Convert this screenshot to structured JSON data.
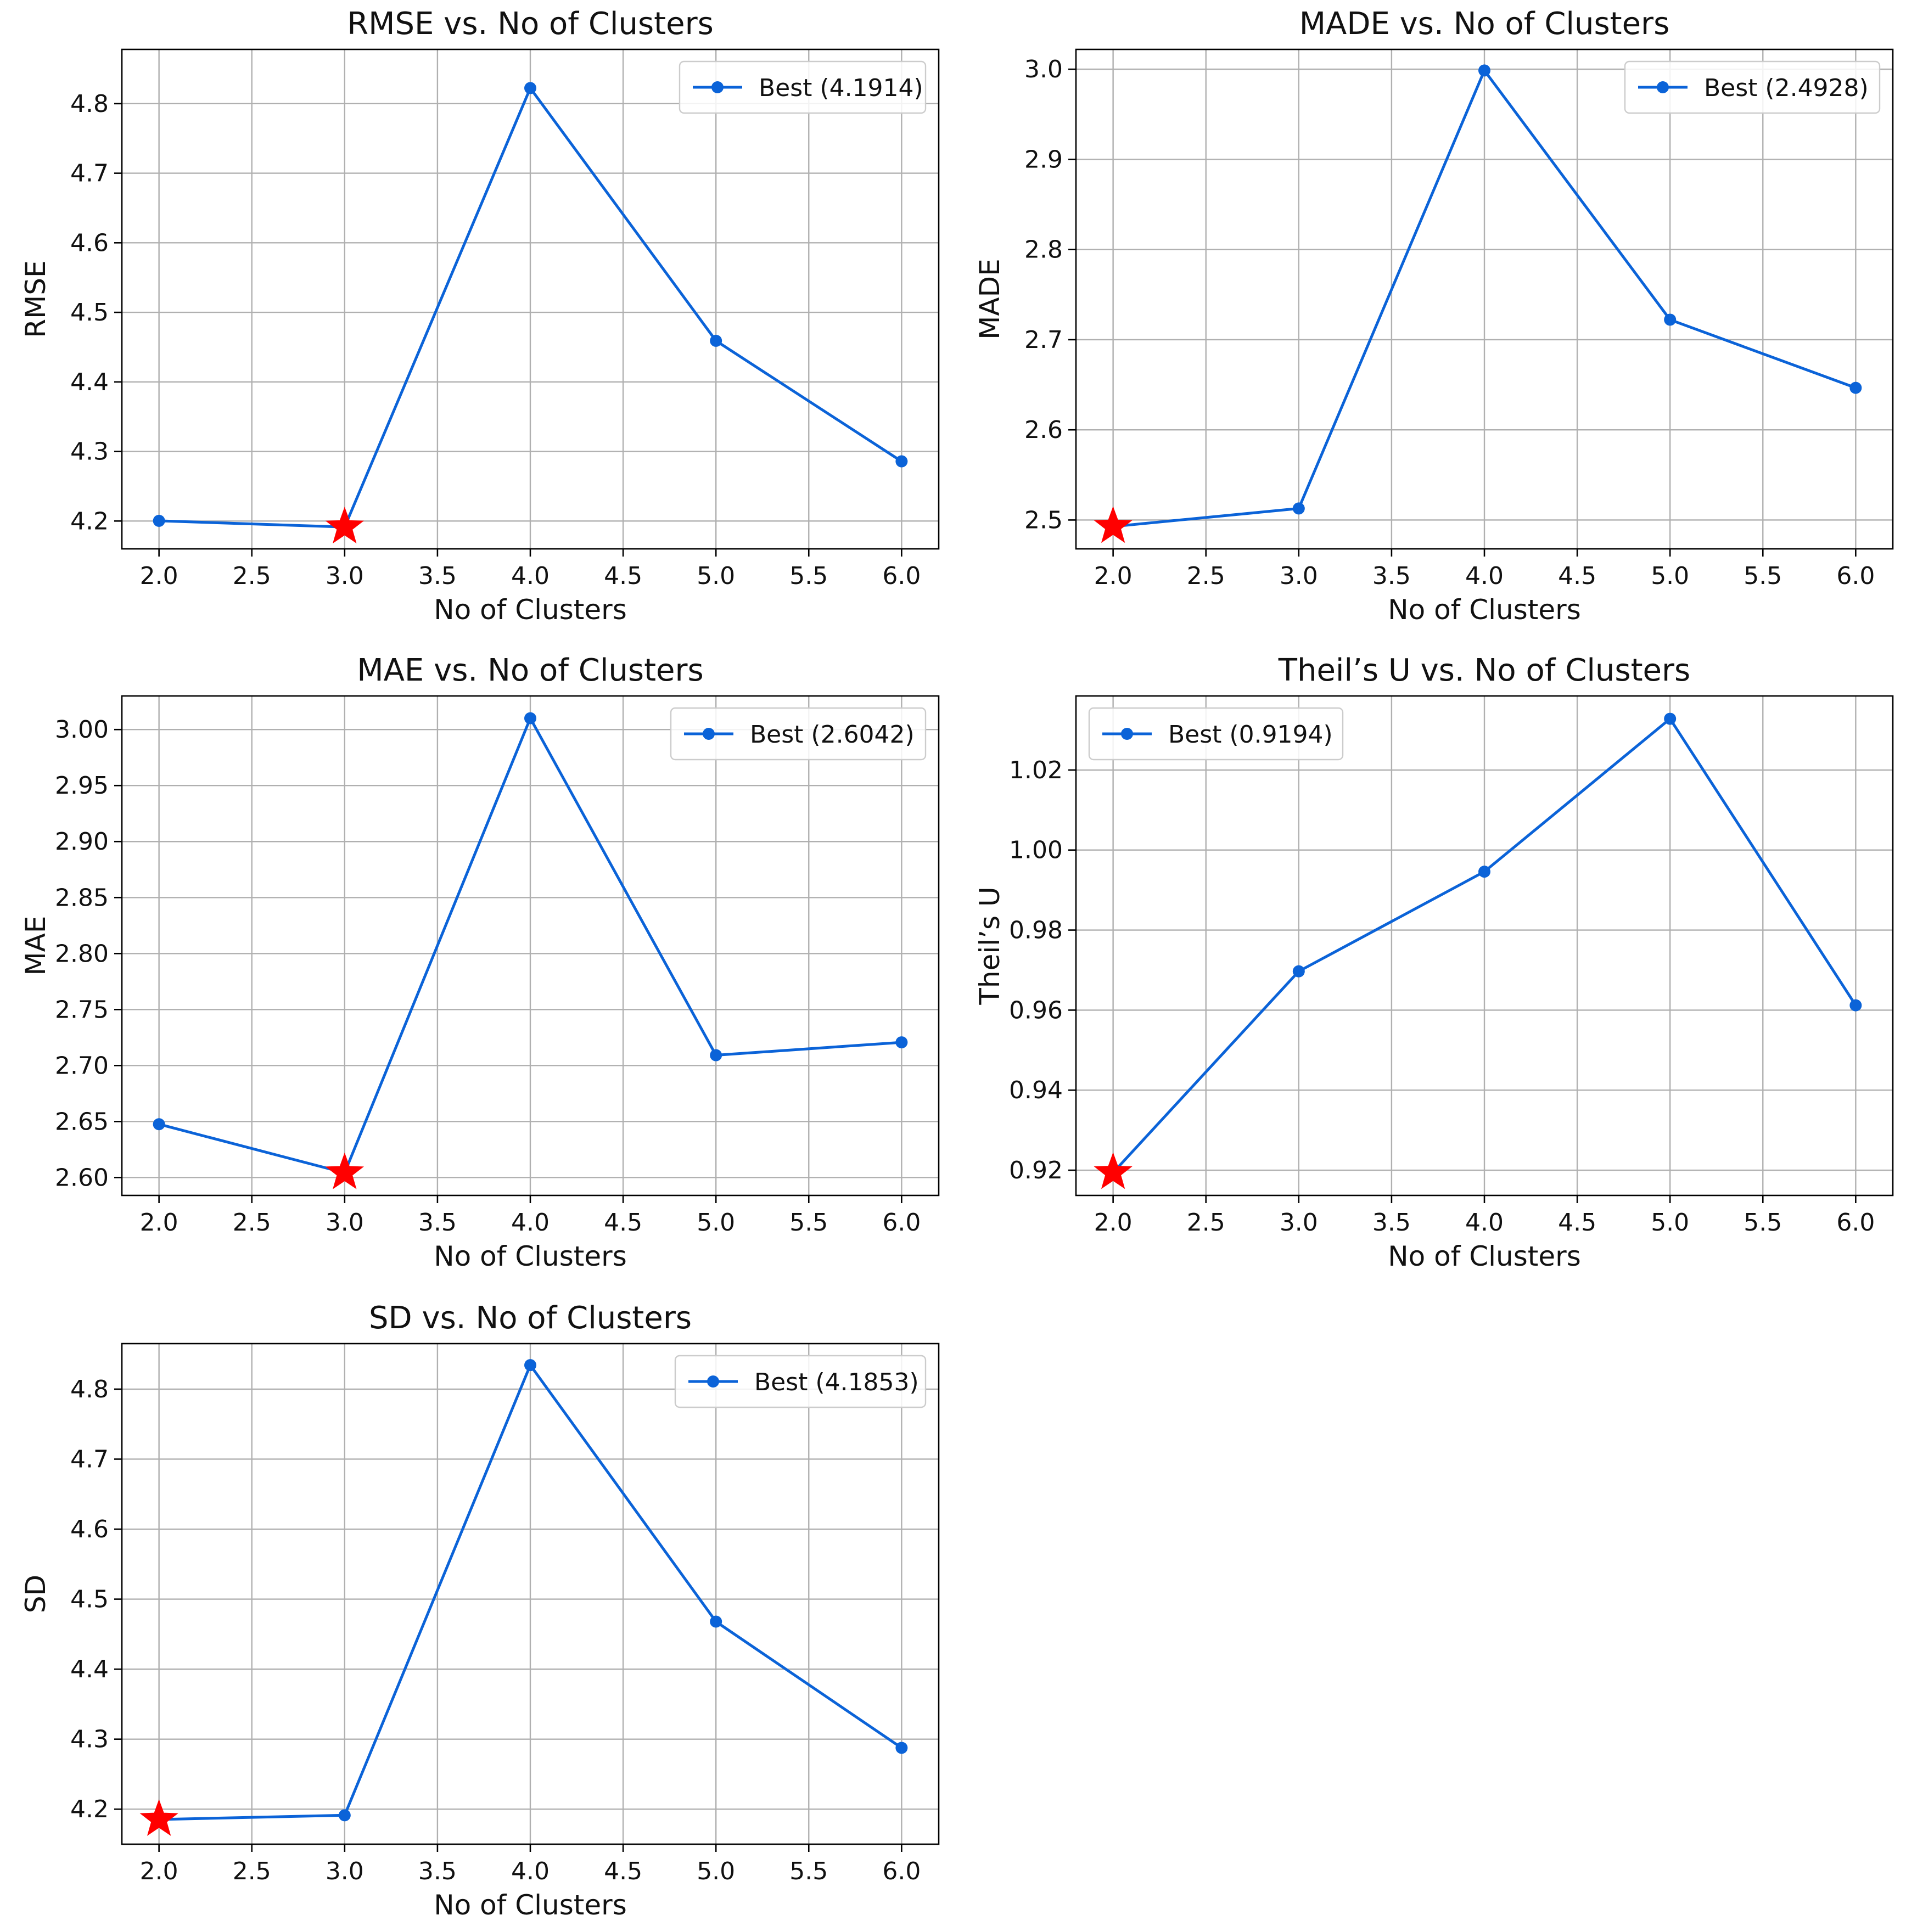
{
  "colors": {
    "line": "#0b63d8",
    "best_marker": "#ff0000",
    "grid": "#b0b0b0"
  },
  "chart_data": [
    {
      "type": "line",
      "title": "RMSE vs. No of Clusters",
      "xlabel": "No of Clusters",
      "ylabel": "RMSE",
      "x": [
        2.0,
        3.0,
        4.0,
        5.0,
        6.0
      ],
      "values": [
        4.2003,
        4.1914,
        4.8224,
        4.4591,
        4.2858
      ],
      "legend": "Best (4.1914)",
      "legend_position": "top-right",
      "best": {
        "x": 3.0,
        "y": 4.1914
      },
      "xlim": [
        1.8,
        6.2
      ],
      "ylim": [
        4.16,
        4.878
      ],
      "xticks": [
        "2.0",
        "2.5",
        "3.0",
        "3.5",
        "4.0",
        "4.5",
        "5.0",
        "5.5",
        "6.0"
      ],
      "yticks": [
        "4.2",
        "4.3",
        "4.4",
        "4.5",
        "4.6",
        "4.7",
        "4.8"
      ],
      "grid": true
    },
    {
      "type": "line",
      "title": "MADE vs. No of Clusters",
      "xlabel": "No of Clusters",
      "ylabel": "MADE",
      "x": [
        2.0,
        3.0,
        4.0,
        5.0,
        6.0
      ],
      "values": [
        2.4928,
        2.5128,
        2.9986,
        2.7222,
        2.6466
      ],
      "legend": "Best (2.4928)",
      "legend_position": "top-right",
      "best": {
        "x": 2.0,
        "y": 2.4928
      },
      "xlim": [
        1.8,
        6.2
      ],
      "ylim": [
        2.468,
        3.022
      ],
      "xticks": [
        "2.0",
        "2.5",
        "3.0",
        "3.5",
        "4.0",
        "4.5",
        "5.0",
        "5.5",
        "6.0"
      ],
      "yticks": [
        "2.5",
        "2.6",
        "2.7",
        "2.8",
        "2.9",
        "3.0"
      ],
      "grid": true
    },
    {
      "type": "line",
      "title": "MAE vs. No of Clusters",
      "xlabel": "No of Clusters",
      "ylabel": "MAE",
      "x": [
        2.0,
        3.0,
        4.0,
        5.0,
        6.0
      ],
      "values": [
        2.6476,
        2.6042,
        3.0101,
        2.7092,
        2.7207
      ],
      "legend": "Best (2.6042)",
      "legend_position": "top-right",
      "best": {
        "x": 3.0,
        "y": 2.6042
      },
      "xlim": [
        1.8,
        6.2
      ],
      "ylim": [
        2.584,
        3.03
      ],
      "xticks": [
        "2.0",
        "2.5",
        "3.0",
        "3.5",
        "4.0",
        "4.5",
        "5.0",
        "5.5",
        "6.0"
      ],
      "yticks": [
        "2.60",
        "2.65",
        "2.70",
        "2.75",
        "2.80",
        "2.85",
        "2.90",
        "2.95",
        "3.00"
      ],
      "grid": true
    },
    {
      "type": "line",
      "title": "Theil’s U vs. No of Clusters",
      "xlabel": "No of Clusters",
      "ylabel": "Theil’s U",
      "x": [
        2.0,
        3.0,
        4.0,
        5.0,
        6.0
      ],
      "values": [
        0.9194,
        0.9697,
        0.9946,
        1.0328,
        0.9612
      ],
      "legend": "Best (0.9194)",
      "legend_position": "top-left",
      "best": {
        "x": 2.0,
        "y": 0.9194
      },
      "xlim": [
        1.8,
        6.2
      ],
      "ylim": [
        0.9137,
        1.0385
      ],
      "xticks": [
        "2.0",
        "2.5",
        "3.0",
        "3.5",
        "4.0",
        "4.5",
        "5.0",
        "5.5",
        "6.0"
      ],
      "yticks": [
        "0.92",
        "0.94",
        "0.96",
        "0.98",
        "1.00",
        "1.02"
      ],
      "grid": true
    },
    {
      "type": "line",
      "title": "SD vs. No of Clusters",
      "xlabel": "No of Clusters",
      "ylabel": "SD",
      "x": [
        2.0,
        3.0,
        4.0,
        5.0,
        6.0
      ],
      "values": [
        4.1853,
        4.1913,
        4.8343,
        4.4679,
        4.2876
      ],
      "legend": "Best (4.1853)",
      "legend_position": "top-right",
      "best": {
        "x": 2.0,
        "y": 4.1853
      },
      "xlim": [
        1.8,
        6.2
      ],
      "ylim": [
        4.15,
        4.865
      ],
      "xticks": [
        "2.0",
        "2.5",
        "3.0",
        "3.5",
        "4.0",
        "4.5",
        "5.0",
        "5.5",
        "6.0"
      ],
      "yticks": [
        "4.2",
        "4.3",
        "4.4",
        "4.5",
        "4.6",
        "4.7",
        "4.8"
      ],
      "grid": true
    }
  ]
}
